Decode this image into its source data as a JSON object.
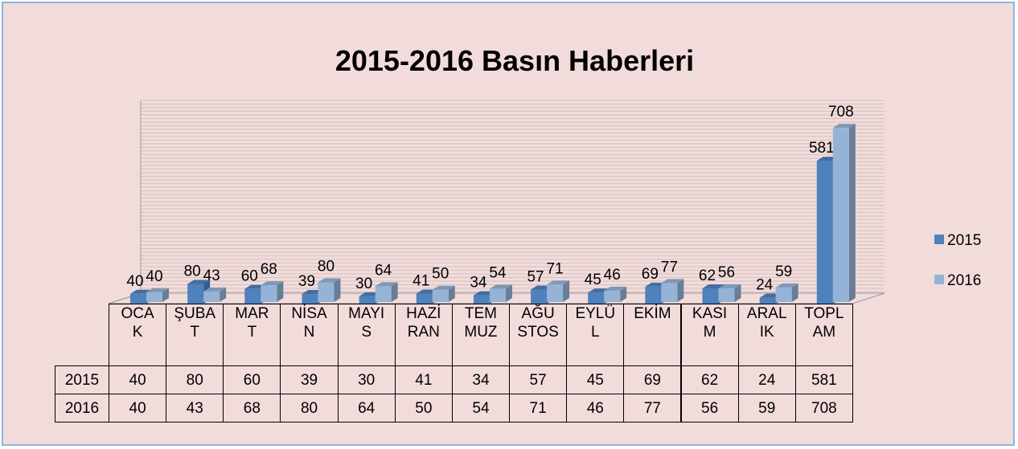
{
  "chart_data": {
    "type": "bar",
    "title": "2015-2016 Basın Haberleri",
    "categories": [
      "OCAK",
      "ŞUBAT",
      "MART",
      "NİSAN",
      "MAYIS",
      "HAZİRAN",
      "TEMMUZ",
      "AĞUSTOS",
      "EYLÜL",
      "EKİM",
      "KASIM",
      "ARALIK",
      "TOPLAM"
    ],
    "series": [
      {
        "name": "2015",
        "color": "#4f81bd",
        "values": [
          40,
          80,
          60,
          39,
          30,
          41,
          34,
          57,
          45,
          69,
          62,
          24,
          581
        ]
      },
      {
        "name": "2016",
        "color": "#95b3d7",
        "values": [
          40,
          43,
          68,
          80,
          64,
          50,
          54,
          71,
          46,
          77,
          56,
          59,
          708
        ]
      }
    ],
    "ylim": [
      0,
      800
    ],
    "legend": "right"
  }
}
